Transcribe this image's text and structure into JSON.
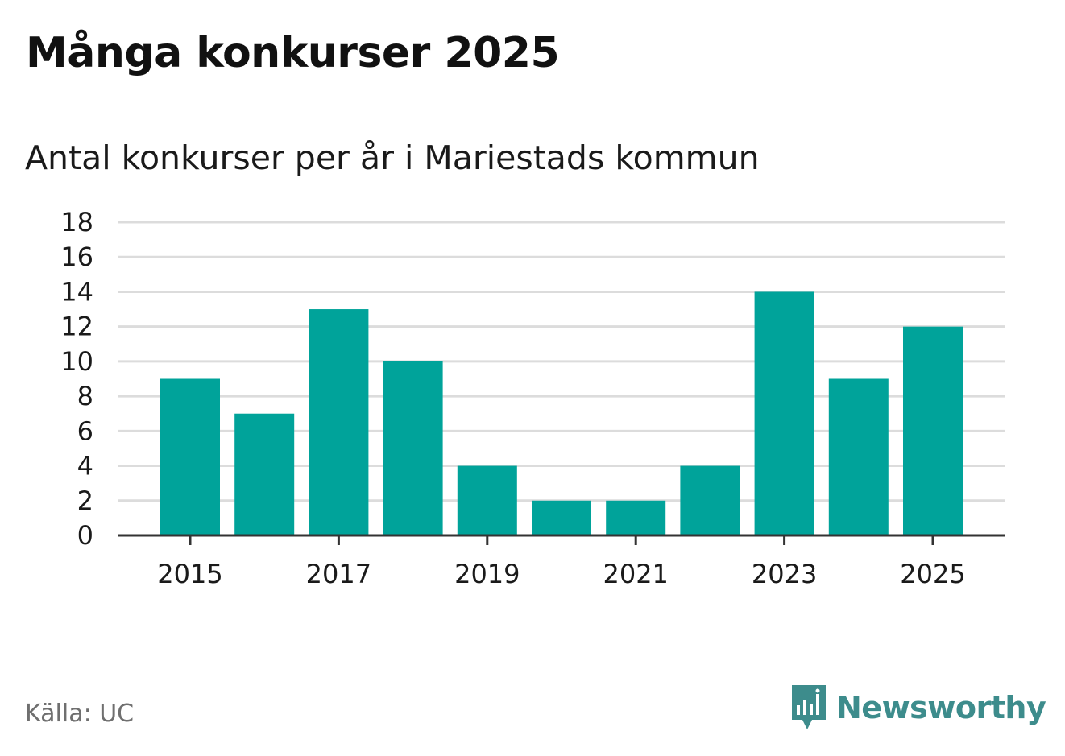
{
  "title": "Många konkurser 2025",
  "subtitle": "Antal konkurser per år i Mariestads kommun",
  "source": "Källa: UC",
  "brand": "Newsworthy",
  "colors": {
    "bar": "#00a39a",
    "grid": "#dcdcdc",
    "axis": "#333333",
    "brand": "#3d8c8c"
  },
  "chart_data": {
    "type": "bar",
    "categories": [
      "2015",
      "2016",
      "2017",
      "2018",
      "2019",
      "2020",
      "2021",
      "2022",
      "2023",
      "2024",
      "2025"
    ],
    "values": [
      9,
      7,
      13,
      10,
      4,
      2,
      2,
      4,
      14,
      9,
      12
    ],
    "xtick_labels": [
      "2015",
      "2017",
      "2019",
      "2021",
      "2023",
      "2025"
    ],
    "yticks": [
      0,
      2,
      4,
      6,
      8,
      10,
      12,
      14,
      16,
      18
    ],
    "ylim": [
      0,
      18
    ],
    "title": "Många konkurser 2025",
    "subtitle": "Antal konkurser per år i Mariestads kommun",
    "xlabel": "",
    "ylabel": "",
    "grid": true
  }
}
